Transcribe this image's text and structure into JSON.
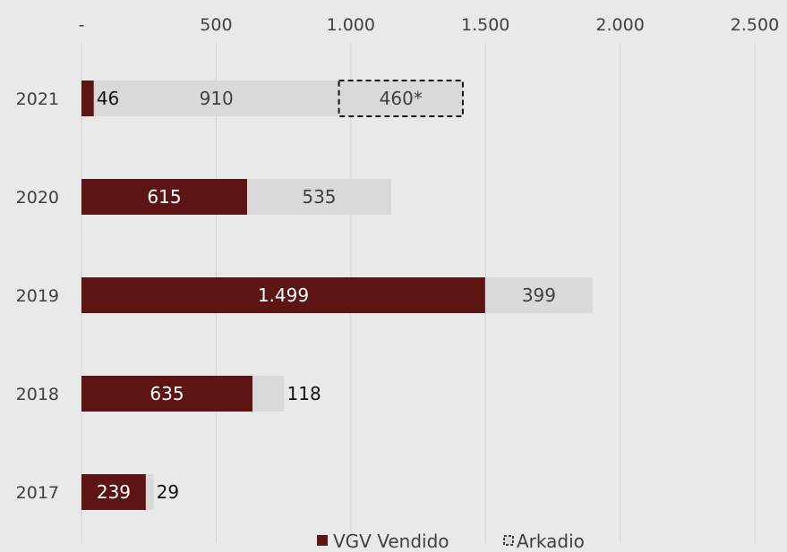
{
  "chart_data": {
    "type": "bar",
    "orientation": "horizontal",
    "stacked": true,
    "categories": [
      "2021",
      "2020",
      "2019",
      "2018",
      "2017"
    ],
    "series": [
      {
        "name": "VGV Vendido",
        "color": "#5c1514",
        "values": [
          46,
          615,
          1499,
          635,
          239
        ],
        "labels": [
          "46",
          "615",
          "1.499",
          "635",
          "239"
        ]
      },
      {
        "name": "",
        "color": "#d9d9d9",
        "values": [
          910,
          535,
          399,
          118,
          29
        ],
        "labels": [
          "910",
          "535",
          "399",
          "118",
          "29"
        ]
      },
      {
        "name": "Arkadio",
        "color": "#d9d9d9",
        "style": "dashed-outline",
        "values": [
          460,
          null,
          null,
          null,
          null
        ],
        "labels": [
          "460*",
          "",
          "",
          "",
          ""
        ]
      }
    ],
    "x_ticks": [
      0,
      500,
      1000,
      1500,
      2000,
      2500
    ],
    "x_tick_labels": [
      "-",
      "500",
      "1.000",
      "1.500",
      "2.000",
      "2.500"
    ],
    "xlim": [
      0,
      2500
    ],
    "grid": "vertical",
    "x_axis_position": "top",
    "legend_position": "bottom",
    "legend": [
      "VGV Vendido",
      "Arkadio"
    ]
  }
}
